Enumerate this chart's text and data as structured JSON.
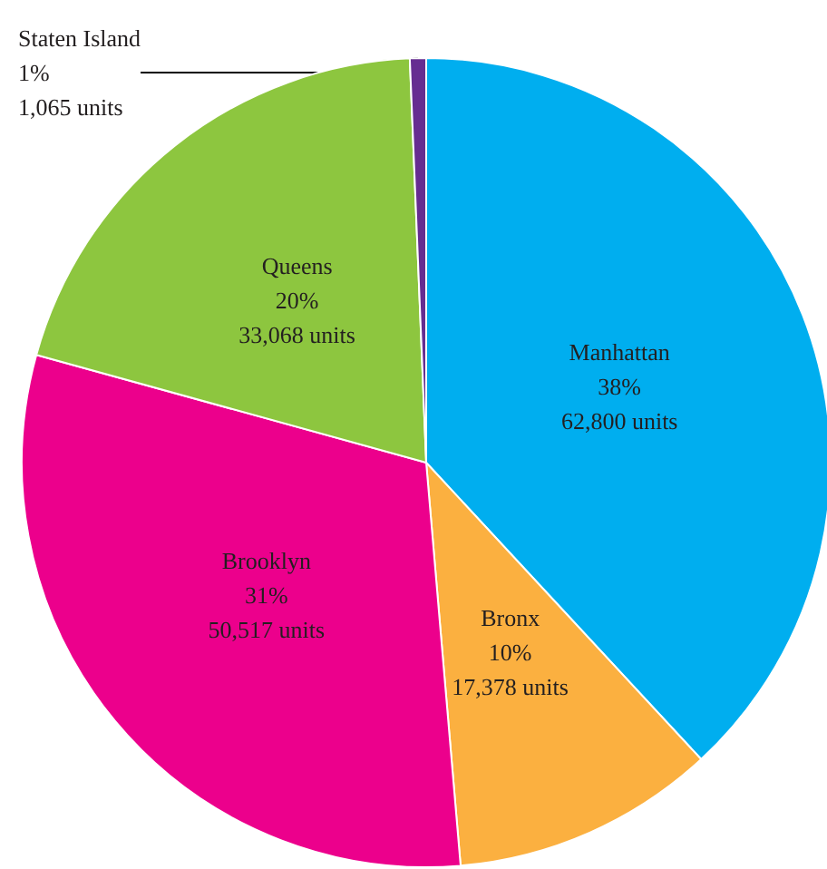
{
  "chart_data": {
    "type": "pie",
    "categories": [
      "Manhattan",
      "Bronx",
      "Brooklyn",
      "Queens",
      "Staten Island"
    ],
    "values": [
      62800,
      17378,
      50517,
      33068,
      1065
    ],
    "value_labels": [
      "38%\n62,800 units",
      "10%\n17,378 units",
      "31%\n50,517 units",
      "20%\n33,068 units",
      "1%\n1,065 units"
    ],
    "colors": [
      "#00aeef",
      "#fbb040",
      "#ec008c",
      "#8dc63f",
      "#662d91"
    ],
    "legend": false
  }
}
